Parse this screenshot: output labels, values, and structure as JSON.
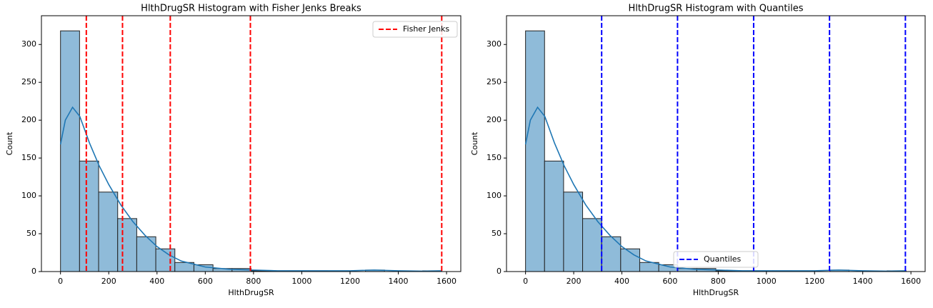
{
  "chart_data": [
    {
      "type": "histogram",
      "title": "HlthDrugSR Histogram with Fisher Jenks Breaks",
      "x_label": "HlthDrugSR",
      "y_label": "Count",
      "bins": [
        0,
        79,
        158,
        237,
        316,
        395,
        474,
        553,
        632,
        711,
        790,
        869,
        948,
        1027,
        1106,
        1185,
        1264,
        1343,
        1422,
        1501,
        1580
      ],
      "values": [
        318,
        146,
        105,
        70,
        46,
        30,
        12,
        9,
        4,
        4,
        1,
        1,
        1,
        1,
        0,
        0,
        2,
        0,
        0,
        1
      ],
      "color": "#8fbbd9",
      "edge_color": "#222222",
      "kde": {
        "color": "#1f77b4",
        "x": [
          0,
          20,
          50,
          80,
          120,
          160,
          200,
          250,
          300,
          350,
          400,
          450,
          500,
          600,
          700,
          800,
          900,
          1000,
          1100,
          1200,
          1300,
          1400,
          1500,
          1580
        ],
        "y": [
          168,
          200,
          217,
          205,
          170,
          140,
          115,
          88,
          66,
          48,
          33,
          22,
          14,
          6,
          3,
          2,
          1,
          1,
          1,
          1,
          2,
          1,
          0.5,
          1
        ]
      },
      "vlines": {
        "name": "Fisher Jenks",
        "color": "#ff0000",
        "values": [
          107,
          257,
          455,
          787,
          1580
        ]
      },
      "legend": "upper right",
      "xlim": [
        -79,
        1659
      ],
      "ylim": [
        0,
        338
      ],
      "xticks": [
        0,
        200,
        400,
        600,
        800,
        1000,
        1200,
        1400,
        1600
      ],
      "yticks": [
        0,
        50,
        100,
        150,
        200,
        250,
        300
      ]
    },
    {
      "type": "histogram",
      "title": "HlthDrugSR Histogram with Quantiles",
      "x_label": "HlthDrugSR",
      "y_label": "Count",
      "bins": [
        0,
        79,
        158,
        237,
        316,
        395,
        474,
        553,
        632,
        711,
        790,
        869,
        948,
        1027,
        1106,
        1185,
        1264,
        1343,
        1422,
        1501,
        1580
      ],
      "values": [
        318,
        146,
        105,
        70,
        46,
        30,
        12,
        9,
        4,
        4,
        1,
        1,
        1,
        1,
        0,
        0,
        2,
        0,
        0,
        1
      ],
      "color": "#8fbbd9",
      "edge_color": "#222222",
      "kde": {
        "color": "#1f77b4",
        "x": [
          0,
          20,
          50,
          80,
          120,
          160,
          200,
          250,
          300,
          350,
          400,
          450,
          500,
          600,
          700,
          800,
          900,
          1000,
          1100,
          1200,
          1300,
          1400,
          1500,
          1580
        ],
        "y": [
          168,
          200,
          217,
          205,
          170,
          140,
          115,
          88,
          66,
          48,
          33,
          22,
          14,
          6,
          3,
          2,
          1,
          1,
          1,
          1,
          2,
          1,
          0.5,
          1
        ]
      },
      "vlines": {
        "name": "Quantiles",
        "color": "#0000ff",
        "values": [
          316,
          631,
          947,
          1262,
          1577
        ]
      },
      "legend": "lower center",
      "xlim": [
        -79,
        1659
      ],
      "ylim": [
        0,
        338
      ],
      "xticks": [
        0,
        200,
        400,
        600,
        800,
        1000,
        1200,
        1400,
        1600
      ],
      "yticks": [
        0,
        50,
        100,
        150,
        200,
        250,
        300
      ]
    }
  ]
}
